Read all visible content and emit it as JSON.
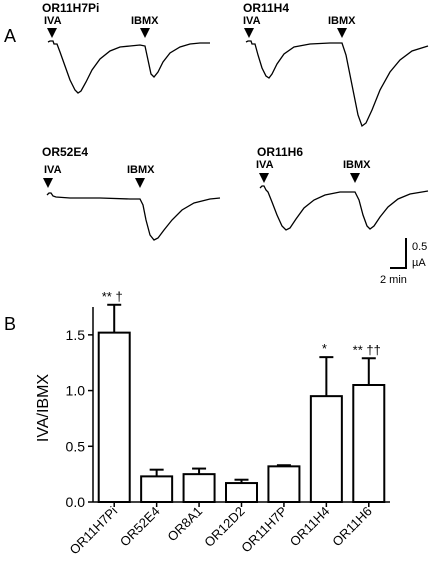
{
  "panel_a": {
    "label": "A",
    "traces": [
      {
        "receptor": "OR11H7Pi",
        "marker1": "IVA",
        "marker2": "IBMX"
      },
      {
        "receptor": "OR11H4",
        "marker1": "IVA",
        "marker2": "IBMX"
      },
      {
        "receptor": "OR52E4",
        "marker1": "IVA",
        "marker2": "IBMX"
      },
      {
        "receptor": "OR11H6",
        "marker1": "IVA",
        "marker2": "IBMX"
      }
    ],
    "scale_bar": {
      "current": "0.5",
      "current_unit": "µA",
      "time": "2 min"
    }
  },
  "panel_b": {
    "label": "B",
    "chart_data": {
      "type": "bar",
      "categories": [
        "OR11H7Pi",
        "OR52E4",
        "OR8A1",
        "OR12D2",
        "OR11H7P",
        "OR11H4",
        "OR11H6"
      ],
      "values": [
        1.52,
        0.23,
        0.25,
        0.17,
        0.32,
        0.95,
        1.05
      ],
      "errors": [
        0.25,
        0.06,
        0.05,
        0.03,
        0.01,
        0.35,
        0.24
      ],
      "significance": [
        "** †",
        "",
        "",
        "",
        "",
        "*",
        "** ††"
      ],
      "ylabel": "IVA/IBMX",
      "xlabel": "",
      "ylim": [
        0,
        1.75
      ],
      "yticks": [
        0.0,
        0.5,
        1.0,
        1.5
      ],
      "ytick_labels": [
        "0.0",
        "0.5",
        "1.0",
        "1.5"
      ]
    }
  }
}
